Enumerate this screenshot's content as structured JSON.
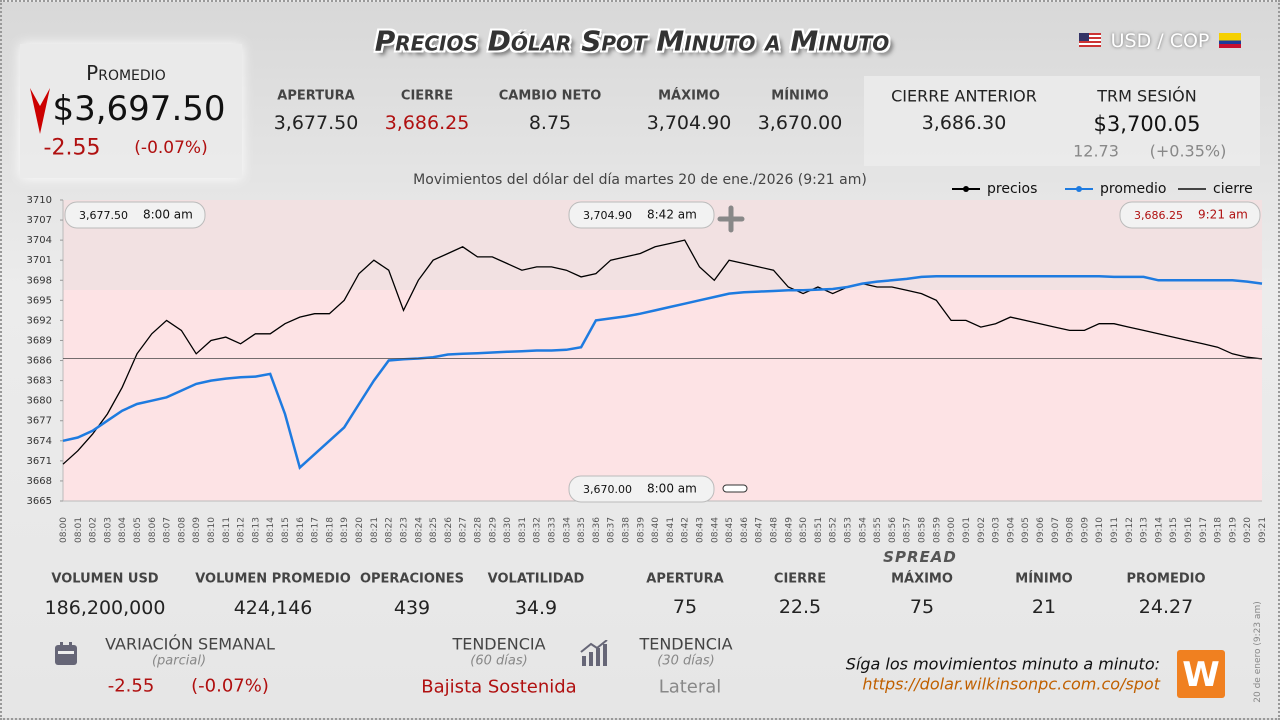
{
  "header": {
    "title": "Precios Dólar Spot Minuto a Minuto",
    "pair": "USD / COP"
  },
  "summary": {
    "label": "Promedio",
    "value": "$3,697.50",
    "change": "-2.55",
    "change_pct": "(-0.07%)"
  },
  "stats": [
    {
      "label": "APERTURA",
      "value": "3,677.50"
    },
    {
      "label": "CIERRE",
      "value": "3,686.25"
    },
    {
      "label": "CAMBIO NETO",
      "value": "8.75"
    },
    {
      "label": "MÁXIMO",
      "value": "3,704.90"
    },
    {
      "label": "MÍNIMO",
      "value": "3,670.00"
    }
  ],
  "previous_close": {
    "label": "CIERRE ANTERIOR",
    "value": "3,686.30"
  },
  "trm": {
    "label": "TRM SESIÓN",
    "value": "$3,700.05",
    "change": "12.73",
    "change_pct": "(+0.35%)"
  },
  "chart_data": {
    "type": "line",
    "title": "Movimientos del dólar del día martes 20 de ene./2026 (9:21 am)",
    "categories": [
      "08:00",
      "08:01",
      "08:02",
      "08:03",
      "08:04",
      "08:05",
      "08:06",
      "08:07",
      "08:08",
      "08:09",
      "08:10",
      "08:11",
      "08:12",
      "08:13",
      "08:14",
      "08:15",
      "08:16",
      "08:17",
      "08:18",
      "08:19",
      "08:20",
      "08:21",
      "08:22",
      "08:23",
      "08:24",
      "08:25",
      "08:26",
      "08:27",
      "08:28",
      "08:29",
      "08:30",
      "08:31",
      "08:32",
      "08:33",
      "08:34",
      "08:35",
      "08:36",
      "08:37",
      "08:38",
      "08:39",
      "08:40",
      "08:41",
      "08:42",
      "08:43",
      "08:44",
      "08:45",
      "08:46",
      "08:47",
      "08:48",
      "08:49",
      "08:50",
      "08:51",
      "08:52",
      "08:53",
      "08:54",
      "08:55",
      "08:56",
      "08:57",
      "08:58",
      "08:59",
      "09:00",
      "09:01",
      "09:02",
      "09:03",
      "09:04",
      "09:05",
      "09:06",
      "09:07",
      "09:08",
      "09:09",
      "09:10",
      "09:11",
      "09:12",
      "09:13",
      "09:14",
      "09:15",
      "09:16",
      "09:17",
      "09:18",
      "09:19",
      "09:20",
      "09:21"
    ],
    "series": [
      {
        "name": "precios",
        "color": "#000000",
        "values": [
          3670.5,
          3672.5,
          3675,
          3678,
          3682,
          3687,
          3690,
          3692,
          3690.5,
          3687,
          3689,
          3689.5,
          3688.5,
          3690,
          3690,
          3691.5,
          3692.5,
          3693,
          3693,
          3695,
          3699,
          3701,
          3699.5,
          3693.5,
          3698,
          3701,
          3702,
          3703,
          3701.5,
          3701.5,
          3700.5,
          3699.5,
          3700,
          3700,
          3699.5,
          3698.5,
          3699,
          3701,
          3701.5,
          3702,
          3703,
          3703.5,
          3704,
          3700,
          3698,
          3701,
          3700.5,
          3700,
          3699.5,
          3697,
          3696,
          3697,
          3696,
          3697,
          3697.5,
          3697,
          3697,
          3696.5,
          3696,
          3695,
          3692,
          3692,
          3691,
          3691.5,
          3692.5,
          3692,
          3691.5,
          3691,
          3690.5,
          3690.5,
          3691.5,
          3691.5,
          3691,
          3690.5,
          3690,
          3689.5,
          3689,
          3688.5,
          3688,
          3687,
          3686.5,
          3686.25
        ]
      },
      {
        "name": "promedio",
        "color": "#1e7be0",
        "values": [
          3674,
          3674.5,
          3675.5,
          3677,
          3678.5,
          3679.5,
          3680,
          3680.5,
          3681.5,
          3682.5,
          3683,
          3683.3,
          3683.5,
          3683.6,
          3684,
          3678,
          3670,
          3672,
          3674,
          3676,
          3679.5,
          3683,
          3686,
          3686.2,
          3686.3,
          3686.5,
          3686.9,
          3687,
          3687.1,
          3687.2,
          3687.3,
          3687.4,
          3687.5,
          3687.5,
          3687.6,
          3688,
          3692,
          3692.3,
          3692.6,
          3693,
          3693.5,
          3694,
          3694.5,
          3695,
          3695.5,
          3696,
          3696.2,
          3696.3,
          3696.4,
          3696.5,
          3696.5,
          3696.6,
          3696.7,
          3697,
          3697.5,
          3697.8,
          3698,
          3698.2,
          3698.5,
          3698.6,
          3698.6,
          3698.6,
          3698.6,
          3698.6,
          3698.6,
          3698.6,
          3698.6,
          3698.6,
          3698.6,
          3698.6,
          3698.6,
          3698.5,
          3698.5,
          3698.5,
          3698,
          3698,
          3698,
          3698,
          3698,
          3698,
          3697.8,
          3697.5
        ]
      },
      {
        "name": "cierre",
        "color": "#444444",
        "value": 3686.3
      }
    ],
    "ylim": [
      3665,
      3710
    ],
    "yticks": [
      3665,
      3668,
      3671,
      3674,
      3677,
      3680,
      3683,
      3686,
      3689,
      3692,
      3695,
      3698,
      3701,
      3704,
      3707,
      3710
    ],
    "annotations": [
      {
        "text": "3,677.50",
        "time": "8:00 am"
      },
      {
        "text": "3,704.90",
        "time": "8:42 am"
      },
      {
        "text": "3,686.25",
        "time": "9:21 am"
      },
      {
        "text": "3,670.00",
        "time": "8:00 am"
      }
    ],
    "legend": "top-right"
  },
  "volume_stats": [
    {
      "label": "VOLUMEN USD",
      "value": "186,200,000"
    },
    {
      "label": "VOLUMEN PROMEDIO",
      "value": "424,146"
    },
    {
      "label": "OPERACIONES",
      "value": "439"
    },
    {
      "label": "VOLATILIDAD",
      "value": "34.9"
    }
  ],
  "spread": {
    "title": "SPREAD",
    "items": [
      {
        "label": "APERTURA",
        "value": "75"
      },
      {
        "label": "CIERRE",
        "value": "22.5"
      },
      {
        "label": "MÁXIMO",
        "value": "75"
      },
      {
        "label": "MÍNIMO",
        "value": "21"
      },
      {
        "label": "PROMEDIO",
        "value": "24.27"
      }
    ]
  },
  "weekly": {
    "label": "VARIACIÓN SEMANAL",
    "note": "(parcial)",
    "change": "-2.55",
    "change_pct": "(-0.07%)"
  },
  "trend60": {
    "label": "TENDENCIA",
    "note": "(60 días)",
    "value": "Bajista Sostenida"
  },
  "trend30": {
    "label": "TENDENCIA",
    "note": "(30 días)",
    "value": "Lateral"
  },
  "footer": {
    "text": "Síga los movimientos minuto a minuto:",
    "url": "https://dolar.wilkinsonpc.com.co/spot"
  },
  "date_note": "20 de enero (9:23 am)"
}
